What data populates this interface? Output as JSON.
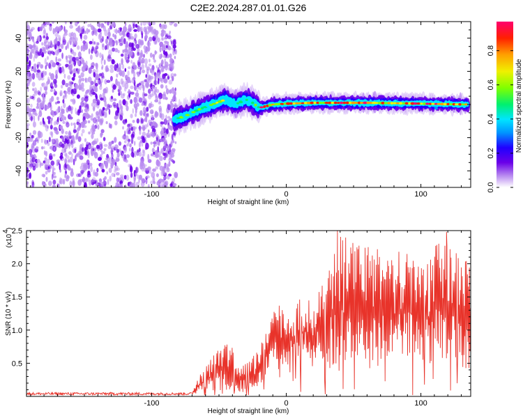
{
  "chart_data": [
    {
      "type": "heatmap",
      "title": "C2E2.2024.287.01.01.G26",
      "xlabel": "Height of straight line (km)",
      "ylabel": "Frequency (Hz)",
      "xlim": [
        -193,
        137
      ],
      "ylim": [
        -50,
        50
      ],
      "x_ticks": [
        -100,
        0,
        100
      ],
      "y_ticks": [
        -40,
        -20,
        0,
        20,
        40
      ],
      "colorbar": {
        "label": "Normalized spectral amplitude",
        "range": [
          0,
          0.97
        ],
        "ticks": [
          0.0,
          0.2,
          0.4,
          0.6,
          0.8
        ],
        "colors": [
          "#ffffff",
          "#b98cf0",
          "#6a00e8",
          "#2000ff",
          "#0095ff",
          "#00e5ff",
          "#00f070",
          "#80ff00",
          "#f0f000",
          "#ffa000",
          "#ff2000",
          "#ff006e"
        ]
      },
      "ridge": {
        "x": [
          -83,
          -75,
          -65,
          -55,
          -45,
          -38,
          -30,
          -25,
          -20,
          -15,
          -10,
          0,
          20,
          40,
          60,
          80,
          100,
          120,
          135
        ],
        "frequency": [
          -9,
          -7,
          -3,
          0,
          3,
          0,
          3,
          1,
          -2,
          -1,
          0,
          0.5,
          1,
          1,
          1,
          0.8,
          0.5,
          0.2,
          0
        ]
      },
      "noise_region_x": [
        -193,
        -82
      ]
    },
    {
      "type": "line",
      "title": "",
      "xlabel": "Height of straight line (km)",
      "ylabel": "SNR (10 * v/v)",
      "y_multiplier": "(x10",
      "y_multiplier_exp": "4",
      "xlim": [
        -193,
        137
      ],
      "ylim": [
        0,
        2.5
      ],
      "x_ticks": [
        -100,
        0,
        100
      ],
      "y_ticks": [
        0.5,
        1.0,
        1.5,
        2.0,
        2.5
      ],
      "color": "#e8332a",
      "envelope": {
        "x": [
          -193,
          -70,
          -65,
          -55,
          -45,
          -40,
          -35,
          -25,
          -20,
          -15,
          -10,
          -5,
          0,
          5,
          10,
          15,
          20,
          25,
          30,
          40,
          50,
          60,
          80,
          100,
          120,
          137
        ],
        "baseline": [
          0.02,
          0.02,
          0.05,
          0.05,
          0.05,
          0.05,
          0.02,
          0.05,
          0.1,
          0.2,
          0.3,
          0.3,
          0.4,
          0.5,
          0.45,
          0.4,
          0.4,
          0.45,
          0.3,
          0.2,
          0.3,
          0.3,
          0.4,
          0.4,
          0.3,
          0.3
        ],
        "peak": [
          0.06,
          0.06,
          0.3,
          0.6,
          0.85,
          0.75,
          0.45,
          0.6,
          0.75,
          1.05,
          1.3,
          1.4,
          1.2,
          1.3,
          1.5,
          1.55,
          1.3,
          1.7,
          2.0,
          2.5,
          2.4,
          2.3,
          2.2,
          2.1,
          2.45,
          1.95
        ]
      },
      "notable_points": [
        {
          "x": 38,
          "y": 2.5
        },
        {
          "x": 119,
          "y": 2.48
        },
        {
          "x": 136,
          "y": 1.94
        }
      ]
    }
  ]
}
